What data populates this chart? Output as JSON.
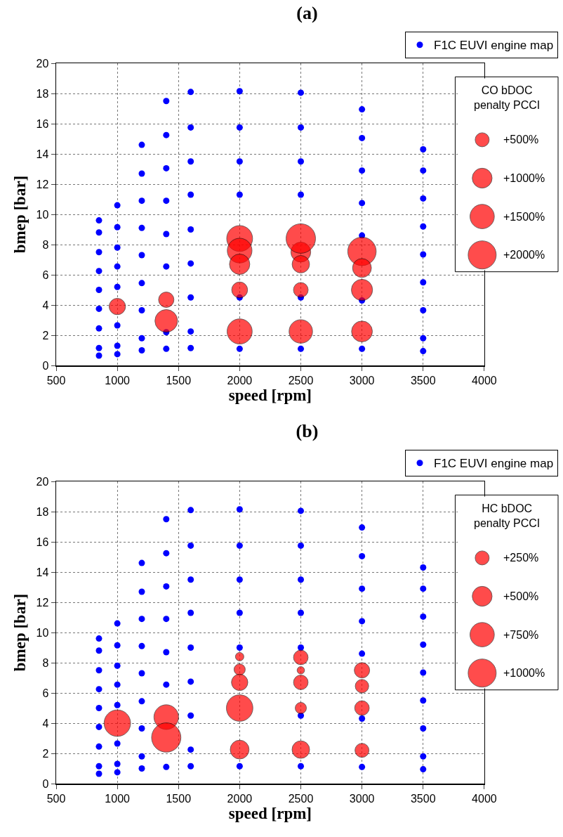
{
  "chart_data": [
    {
      "type": "bubble",
      "title": "(a)",
      "xlabel": "speed [rpm]",
      "ylabel": "bmep [bar]",
      "legend_title": "CO bDOC penalty PCCI",
      "xlim": [
        500,
        4000
      ],
      "xticks": [
        500,
        1000,
        1500,
        2000,
        2500,
        3000,
        3500,
        4000
      ],
      "ylim": [
        0,
        20
      ],
      "yticks": [
        0,
        2,
        4,
        6,
        8,
        10,
        12,
        14,
        16,
        18,
        20
      ],
      "grid": true,
      "legend": "top right",
      "marker": "circle",
      "size_legend": [
        {
          "value": 500,
          "label": "+500%"
        },
        {
          "value": 1000,
          "label": "+1000%"
        },
        {
          "value": 1500,
          "label": "+1500%"
        },
        {
          "value": 2000,
          "label": "+2000%"
        }
      ],
      "series": [
        {
          "name": "F1C EUVI engine map",
          "type": "scatter",
          "color": "#0000ff",
          "x": [
            850,
            850,
            850,
            850,
            850,
            850,
            850,
            850,
            850,
            1000,
            1000,
            1000,
            1000,
            1000,
            1000,
            1000,
            1000,
            1200,
            1200,
            1200,
            1200,
            1200,
            1200,
            1200,
            1200,
            1200,
            1400,
            1400,
            1400,
            1400,
            1400,
            1400,
            1400,
            1400,
            1600,
            1600,
            1600,
            1600,
            1600,
            1600,
            1600,
            1600,
            1600,
            2000,
            2000,
            2000,
            2000,
            2000,
            2000,
            2500,
            2500,
            2500,
            2500,
            2500,
            2500,
            3000,
            3000,
            3000,
            3000,
            3000,
            3000,
            3000,
            3500,
            3500,
            3500,
            3500,
            3500,
            3500,
            3500,
            3500,
            3500
          ],
          "values": [
            9.6,
            8.8,
            7.5,
            6.25,
            5.0,
            3.75,
            2.45,
            1.15,
            0.65,
            10.6,
            9.15,
            7.8,
            6.55,
            5.2,
            2.65,
            1.3,
            0.75,
            14.6,
            12.7,
            10.9,
            9.1,
            7.3,
            5.45,
            3.65,
            1.8,
            1.0,
            17.5,
            15.25,
            13.05,
            10.9,
            8.7,
            6.55,
            2.2,
            1.1,
            18.1,
            15.75,
            13.5,
            11.3,
            9.0,
            6.75,
            4.5,
            2.25,
            1.15,
            18.15,
            15.75,
            13.5,
            11.3,
            4.5,
            1.1,
            18.05,
            15.75,
            13.5,
            11.3,
            4.5,
            1.1,
            16.95,
            15.05,
            12.9,
            10.75,
            8.6,
            4.3,
            1.1,
            14.3,
            12.9,
            11.05,
            9.2,
            7.35,
            5.5,
            3.65,
            1.8,
            0.95
          ]
        },
        {
          "type": "bubble",
          "color": "#ff0000",
          "x": [
            1000,
            1400,
            1400,
            2000,
            2000,
            2000,
            2000,
            2000,
            2500,
            2500,
            2500,
            2500,
            2500,
            3000,
            3000,
            3000,
            3000
          ],
          "values": [
            3.9,
            4.35,
            2.95,
            8.4,
            7.6,
            6.7,
            5.0,
            2.25,
            7.5,
            8.4,
            6.7,
            5.0,
            2.25,
            7.55,
            6.45,
            5.0,
            2.25
          ],
          "sizes": [
            680,
            600,
            1300,
            1700,
            1550,
            1050,
            640,
            1600,
            1000,
            2200,
            770,
            550,
            1400,
            2050,
            900,
            1140,
            1100
          ]
        }
      ]
    },
    {
      "type": "bubble",
      "title": "(b)",
      "xlabel": "speed [rpm]",
      "ylabel": "bmep [bar]",
      "legend_title": "HC bDOC penalty PCCI",
      "xlim": [
        500,
        4000
      ],
      "xticks": [
        500,
        1000,
        1500,
        2000,
        2500,
        3000,
        3500,
        4000
      ],
      "ylim": [
        0,
        20
      ],
      "yticks": [
        0,
        2,
        4,
        6,
        8,
        10,
        12,
        14,
        16,
        18,
        20
      ],
      "grid": true,
      "legend": "top right",
      "marker": "circle",
      "size_legend": [
        {
          "value": 250,
          "label": "+250%"
        },
        {
          "value": 500,
          "label": "+500%"
        },
        {
          "value": 750,
          "label": "+750%"
        },
        {
          "value": 1000,
          "label": "+1000%"
        }
      ],
      "series": [
        {
          "name": "F1C EUVI engine map",
          "type": "scatter",
          "color": "#0000ff",
          "x": [
            850,
            850,
            850,
            850,
            850,
            850,
            850,
            850,
            850,
            1000,
            1000,
            1000,
            1000,
            1000,
            1000,
            1000,
            1000,
            1200,
            1200,
            1200,
            1200,
            1200,
            1200,
            1200,
            1200,
            1200,
            1400,
            1400,
            1400,
            1400,
            1400,
            1400,
            1400,
            1600,
            1600,
            1600,
            1600,
            1600,
            1600,
            1600,
            1600,
            1600,
            2000,
            2000,
            2000,
            2000,
            2000,
            2000,
            2500,
            2500,
            2500,
            2500,
            2500,
            2500,
            2500,
            3000,
            3000,
            3000,
            3000,
            3000,
            3000,
            3000,
            3500,
            3500,
            3500,
            3500,
            3500,
            3500,
            3500,
            3500,
            3500
          ],
          "values": [
            9.6,
            8.8,
            7.5,
            6.25,
            5.0,
            3.75,
            2.45,
            1.15,
            0.65,
            10.6,
            9.15,
            7.8,
            6.55,
            5.2,
            2.65,
            1.3,
            0.75,
            14.6,
            12.7,
            10.9,
            9.1,
            7.3,
            5.45,
            3.65,
            1.8,
            1.0,
            17.5,
            15.25,
            13.05,
            10.9,
            8.7,
            6.55,
            1.1,
            18.1,
            15.75,
            13.5,
            11.3,
            9.0,
            6.75,
            4.5,
            2.25,
            1.15,
            18.15,
            15.75,
            13.5,
            11.3,
            9.0,
            1.15,
            18.05,
            15.75,
            13.5,
            11.3,
            9.0,
            4.5,
            1.15,
            16.95,
            15.05,
            12.9,
            10.75,
            8.6,
            4.3,
            1.1,
            14.3,
            12.9,
            11.05,
            9.2,
            7.35,
            5.5,
            3.65,
            1.8,
            0.95
          ]
        },
        {
          "type": "bubble",
          "color": "#ff0000",
          "x": [
            1000,
            1400,
            1400,
            2000,
            2000,
            2000,
            2000,
            2000,
            2500,
            2500,
            2500,
            2500,
            2500,
            3000,
            3000,
            3000,
            3000
          ],
          "values": [
            4.0,
            4.4,
            3.05,
            8.4,
            7.55,
            6.7,
            5.0,
            2.25,
            8.35,
            7.5,
            6.7,
            5.0,
            2.25,
            7.5,
            6.45,
            5.0,
            2.2
          ],
          "sizes": [
            890,
            770,
            1090,
            90,
            160,
            340,
            890,
            450,
            270,
            70,
            270,
            160,
            390,
            300,
            230,
            270,
            250
          ]
        }
      ]
    }
  ]
}
